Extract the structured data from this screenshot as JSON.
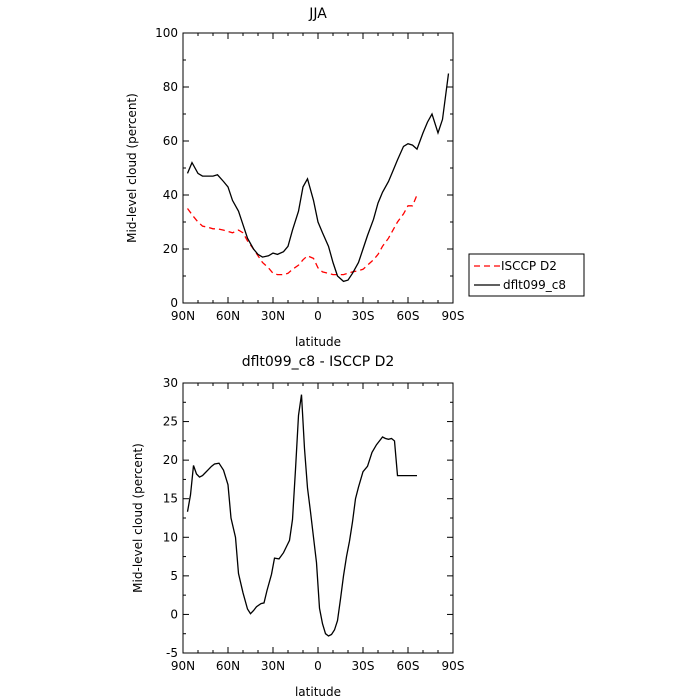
{
  "chart_data": [
    {
      "type": "line",
      "title": "JJA",
      "xlabel": "latitude",
      "ylabel": "Mid-level cloud (percent)",
      "xlim": [
        90,
        -90
      ],
      "ylim": [
        0,
        100
      ],
      "x_ticks": [
        90,
        60,
        30,
        0,
        -30,
        -60,
        -90
      ],
      "x_tick_labels": [
        "90N",
        "60N",
        "30N",
        "0",
        "30S",
        "60S",
        "90S"
      ],
      "y_ticks": [
        0,
        20,
        40,
        60,
        80,
        100
      ],
      "y_tick_labels": [
        "0",
        "20",
        "40",
        "60",
        "80",
        "100"
      ],
      "legend_position": "right",
      "series": [
        {
          "name": "ISCCP D2",
          "color": "#ff0000",
          "dash": "dashed",
          "x": [
            87,
            83,
            80,
            77,
            73,
            70,
            67,
            63,
            60,
            57,
            53,
            50,
            47,
            43,
            40,
            37,
            33,
            30,
            27,
            23,
            20,
            17,
            13,
            10,
            7,
            3,
            0,
            -3,
            -7,
            -10,
            -13,
            -17,
            -20,
            -23,
            -27,
            -30,
            -33,
            -37,
            -40,
            -43,
            -47,
            -50,
            -53,
            -57,
            -60,
            -63,
            -66
          ],
          "y": [
            35,
            32,
            30,
            28.5,
            28,
            27.5,
            27.5,
            27,
            26.5,
            26,
            27,
            26,
            23,
            20,
            17.5,
            15,
            13,
            11,
            10.5,
            10.5,
            11,
            12.5,
            14,
            16,
            17.5,
            16.5,
            13,
            11.5,
            11,
            10.5,
            10.5,
            10.5,
            11,
            11.5,
            12,
            12.5,
            14,
            16,
            18,
            21,
            24,
            27,
            30,
            33,
            36,
            36,
            40
          ]
        },
        {
          "name": "dflt099_c8",
          "color": "#000000",
          "dash": "solid",
          "x": [
            87,
            84,
            80,
            77,
            73,
            70,
            67,
            63,
            60,
            57,
            53,
            50,
            47,
            43,
            40,
            37,
            33,
            30,
            27,
            23,
            20,
            17,
            13,
            10,
            7,
            3,
            0,
            -3,
            -7,
            -10,
            -13,
            -17,
            -20,
            -23,
            -27,
            -30,
            -33,
            -37,
            -40,
            -43,
            -47,
            -50,
            -53,
            -57,
            -60,
            -63,
            -66,
            -70,
            -73,
            -76,
            -80,
            -83,
            -87
          ],
          "y": [
            48,
            52,
            48,
            47,
            47,
            47,
            47.5,
            45,
            43,
            38,
            34,
            29,
            24,
            20,
            18,
            17,
            17.5,
            18.5,
            18,
            19,
            21,
            27,
            34,
            43,
            46,
            38,
            30,
            26,
            21,
            15,
            10,
            8,
            8.5,
            11,
            15,
            20,
            25,
            31,
            37,
            41,
            45,
            49,
            53,
            58,
            59,
            58.5,
            57,
            63,
            67,
            70,
            63,
            68,
            85
          ]
        }
      ]
    },
    {
      "type": "line",
      "title": "dflt099_c8 - ISCCP D2",
      "xlabel": "latitude",
      "ylabel": "Mid-level cloud (percent)",
      "xlim": [
        90,
        -90
      ],
      "ylim": [
        -5,
        30
      ],
      "x_ticks": [
        90,
        60,
        30,
        0,
        -30,
        -60,
        -90
      ],
      "x_tick_labels": [
        "90N",
        "60N",
        "30N",
        "0",
        "30S",
        "60S",
        "90S"
      ],
      "y_ticks": [
        -5,
        0,
        5,
        10,
        15,
        20,
        25,
        30
      ],
      "y_tick_labels": [
        "-5",
        "0",
        "5",
        "10",
        "15",
        "20",
        "25",
        "30"
      ],
      "series": [
        {
          "color": "#000000",
          "dash": "solid",
          "x": [
            87,
            85,
            83,
            81,
            79,
            77,
            75,
            73,
            71,
            69,
            66,
            63,
            60,
            58,
            55,
            53,
            50,
            47,
            45,
            43,
            41,
            38,
            36,
            34,
            31,
            29,
            26,
            23,
            21,
            19,
            17,
            15,
            13,
            11,
            9,
            7,
            5,
            3,
            1,
            -1,
            -3,
            -5,
            -7,
            -9,
            -11,
            -13,
            -15,
            -17,
            -19,
            -21,
            -23,
            -25,
            -27,
            -30,
            -33,
            -36,
            -39,
            -41,
            -43,
            -45,
            -47,
            -49,
            -51,
            -53,
            -55,
            -57,
            -60,
            -63,
            -66
          ],
          "y": [
            13.3,
            15.5,
            19.3,
            18.2,
            17.8,
            18.0,
            18.4,
            18.8,
            19.2,
            19.5,
            19.6,
            18.7,
            16.8,
            12.5,
            10.0,
            5.3,
            2.8,
            0.7,
            0.1,
            0.5,
            1.0,
            1.4,
            1.5,
            3.1,
            5.2,
            7.3,
            7.2,
            8.0,
            8.8,
            9.6,
            12.3,
            18.8,
            25.8,
            28.5,
            21.5,
            16.4,
            13.3,
            10.0,
            6.7,
            0.8,
            -1.2,
            -2.5,
            -2.8,
            -2.6,
            -2.0,
            -0.8,
            2.0,
            5.0,
            7.5,
            9.5,
            12.0,
            15.0,
            16.5,
            18.5,
            19.2,
            21.0,
            22.0,
            22.5,
            23.0,
            22.8,
            22.7,
            22.8,
            22.5,
            18.0,
            18.0,
            18.0,
            18.0,
            18.0,
            18.0
          ]
        }
      ]
    }
  ]
}
